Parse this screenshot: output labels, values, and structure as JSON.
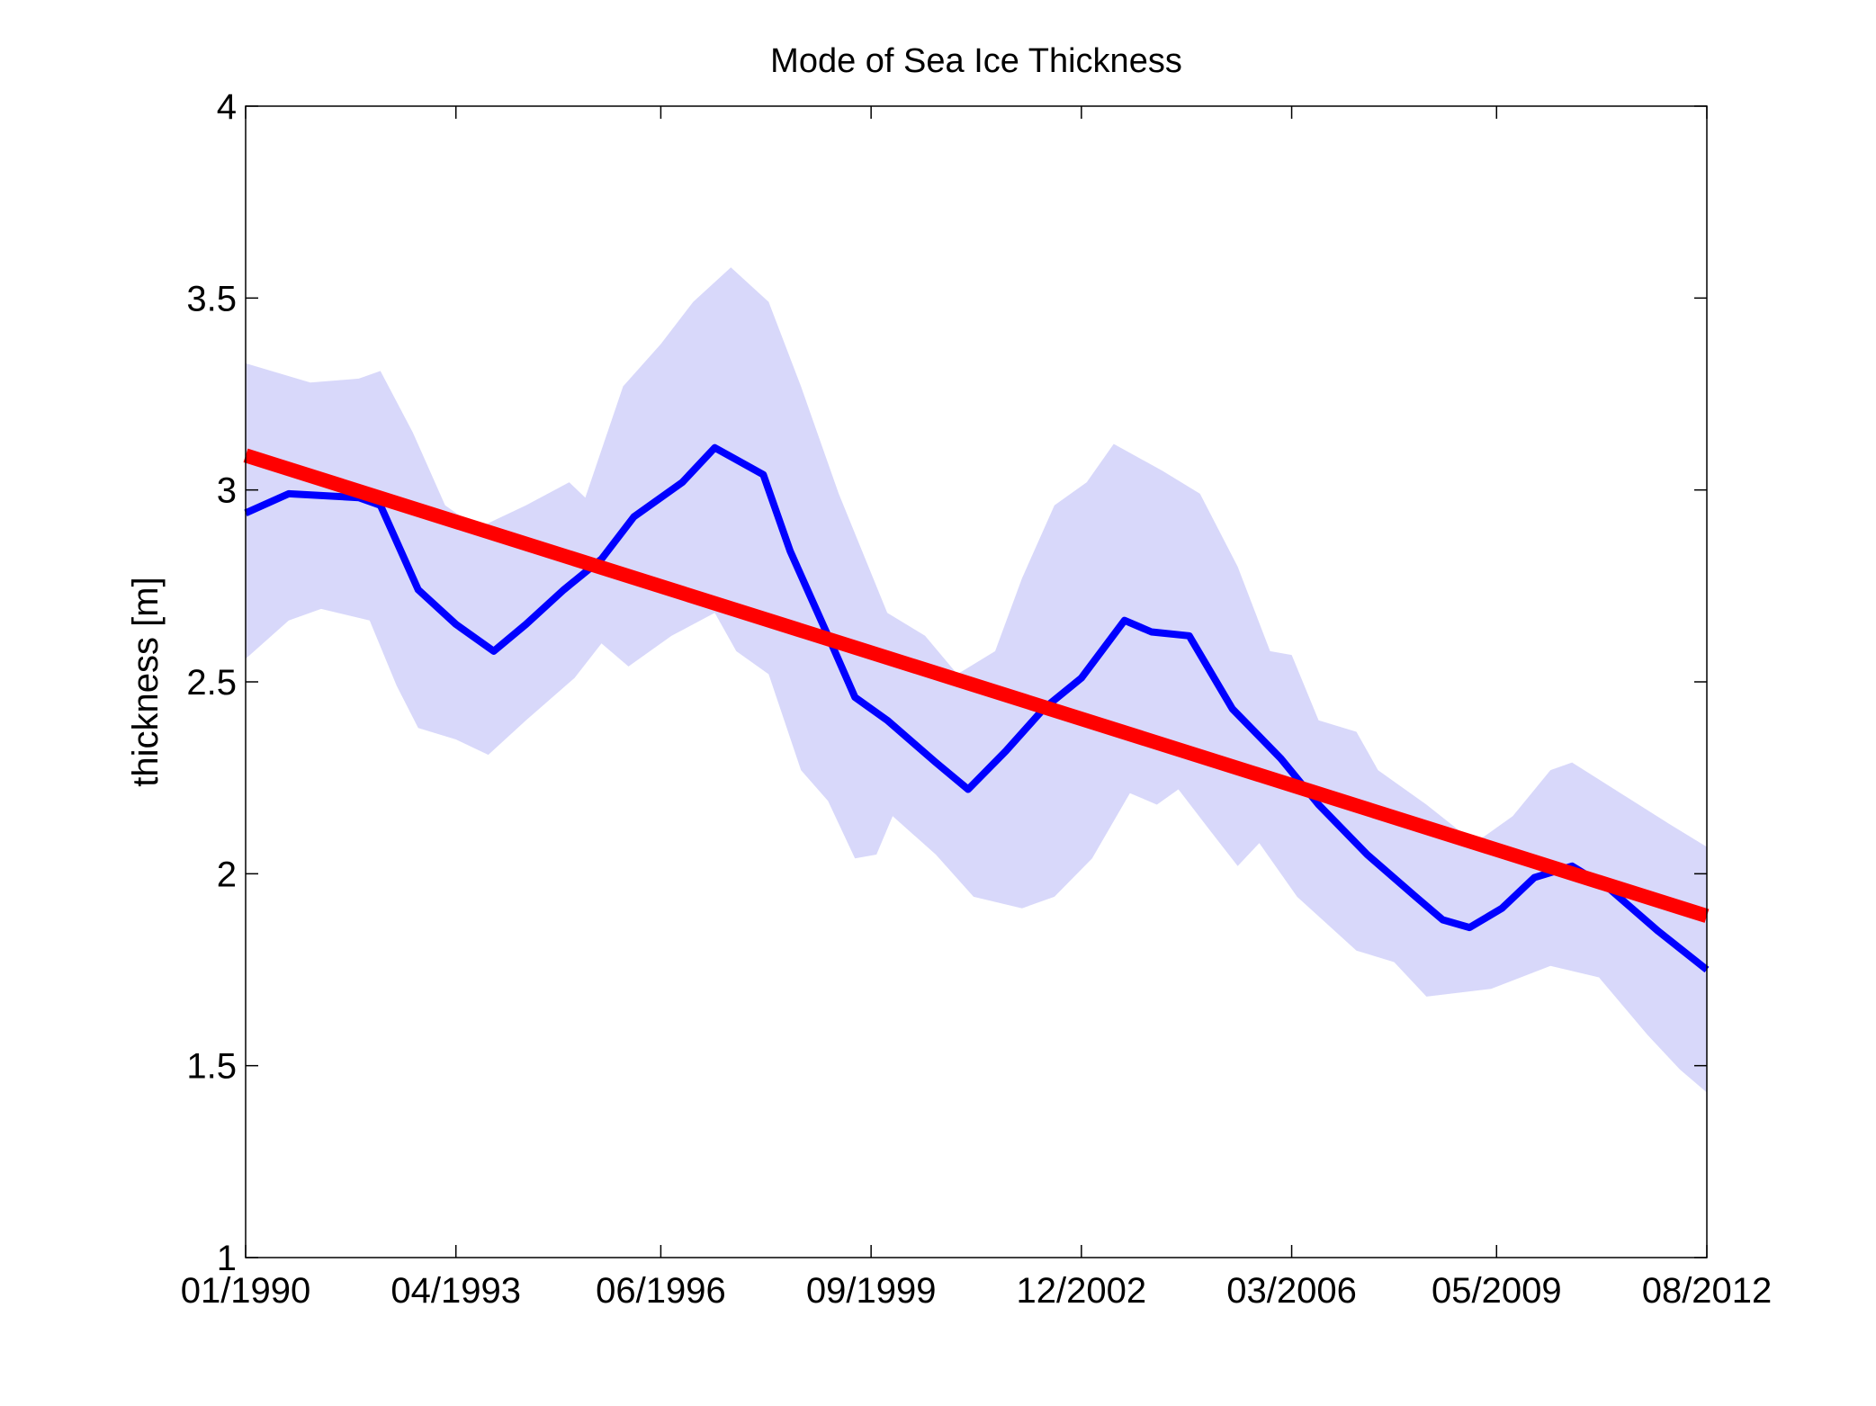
{
  "chart_data": {
    "type": "line",
    "title": "Mode of Sea Ice Thickness",
    "xlabel": "",
    "ylabel": "thickness [m]",
    "xlim": [
      "1990-01",
      "2012-08"
    ],
    "ylim": [
      1,
      4
    ],
    "x_ticks": [
      "01/1990",
      "04/1993",
      "06/1996",
      "09/1999",
      "12/2002",
      "03/2006",
      "05/2009",
      "08/2012"
    ],
    "x_tick_dates": [
      "1990-01",
      "1993-04",
      "1996-06",
      "1999-09",
      "2002-12",
      "2006-03",
      "2009-05",
      "2012-08"
    ],
    "y_ticks": [
      "1",
      "1.5",
      "2",
      "2.5",
      "3",
      "3.5",
      "4"
    ],
    "grid": false,
    "legend": "none",
    "colors": {
      "mode": "#0000ff",
      "trend": "#ff0000",
      "band": "#d8d8fa"
    },
    "band": {
      "upper": {
        "x": [
          "1990-01",
          "1991-01",
          "1991-10",
          "1992-02",
          "1992-08",
          "1993-02",
          "1993-08",
          "1994-05",
          "1995-01",
          "1995-04",
          "1995-11",
          "1996-06",
          "1996-12",
          "1997-07",
          "1998-02",
          "1998-08",
          "1999-03",
          "1999-12",
          "2000-07",
          "2001-01",
          "2001-08",
          "2002-01",
          "2002-07",
          "2003-01",
          "2003-06",
          "2004-03",
          "2004-10",
          "2005-05",
          "2005-11",
          "2006-03",
          "2006-08",
          "2007-03",
          "2007-07",
          "2008-04",
          "2009-01",
          "2009-08",
          "2010-03",
          "2010-07",
          "2011-04",
          "2012-01",
          "2012-08"
        ],
        "y": [
          3.33,
          3.28,
          3.29,
          3.31,
          3.15,
          2.96,
          2.9,
          2.96,
          3.02,
          2.98,
          3.27,
          3.38,
          3.49,
          3.58,
          3.49,
          3.27,
          2.99,
          2.68,
          2.62,
          2.52,
          2.58,
          2.77,
          2.96,
          3.02,
          3.12,
          3.05,
          2.99,
          2.8,
          2.58,
          2.57,
          2.4,
          2.37,
          2.27,
          2.18,
          2.08,
          2.15,
          2.27,
          2.29,
          2.21,
          2.13,
          2.07
        ]
      },
      "lower": {
        "x": [
          "1990-01",
          "1990-09",
          "1991-03",
          "1991-12",
          "1992-05",
          "1992-09",
          "1993-04",
          "1993-10",
          "1994-05",
          "1995-02",
          "1995-07",
          "1995-12",
          "1996-08",
          "1997-04",
          "1997-08",
          "1998-02",
          "1998-08",
          "1999-01",
          "1999-06",
          "1999-10",
          "2000-01",
          "2000-09",
          "2001-04",
          "2002-01",
          "2002-07",
          "2003-02",
          "2003-09",
          "2004-02",
          "2004-06",
          "2004-12",
          "2005-05",
          "2005-09",
          "2006-04",
          "2007-03",
          "2007-10",
          "2008-04",
          "2009-04",
          "2010-03",
          "2010-12",
          "2011-09",
          "2012-03",
          "2012-08"
        ],
        "y": [
          2.56,
          2.66,
          2.69,
          2.66,
          2.49,
          2.38,
          2.35,
          2.31,
          2.4,
          2.51,
          2.6,
          2.54,
          2.62,
          2.68,
          2.58,
          2.52,
          2.27,
          2.19,
          2.04,
          2.05,
          2.15,
          2.05,
          1.94,
          1.91,
          1.94,
          2.04,
          2.21,
          2.18,
          2.22,
          2.11,
          2.02,
          2.08,
          1.94,
          1.8,
          1.77,
          1.68,
          1.7,
          1.76,
          1.73,
          1.58,
          1.49,
          1.43
        ]
      }
    },
    "series": [
      {
        "x": [
          "1990-01",
          "1990-09",
          "1991-10",
          "1992-02",
          "1992-09",
          "1993-04",
          "1993-11",
          "1994-05",
          "1994-12",
          "1995-07",
          "1996-01",
          "1996-10",
          "1997-04",
          "1998-01",
          "1998-06",
          "1999-01",
          "1999-06",
          "1999-12",
          "2000-09",
          "2001-03",
          "2001-10",
          "2002-05",
          "2002-12",
          "2003-08",
          "2004-01",
          "2004-08",
          "2005-04",
          "2006-01",
          "2006-08",
          "2007-05",
          "2008-02",
          "2008-07",
          "2008-12",
          "2009-06",
          "2009-12",
          "2010-07",
          "2011-02",
          "2011-11",
          "2012-08"
        ],
        "y": [
          2.94,
          2.99,
          2.98,
          2.96,
          2.74,
          2.65,
          2.58,
          2.65,
          2.74,
          2.82,
          2.93,
          3.02,
          3.11,
          3.04,
          2.84,
          2.62,
          2.46,
          2.4,
          2.29,
          2.22,
          2.32,
          2.43,
          2.51,
          2.66,
          2.63,
          2.62,
          2.43,
          2.3,
          2.18,
          2.05,
          1.94,
          1.88,
          1.86,
          1.91,
          1.99,
          2.02,
          1.96,
          1.85,
          1.75
        ]
      },
      {
        "x": [
          "1990-01",
          "2012-08"
        ],
        "y": [
          3.09,
          1.89
        ]
      }
    ]
  }
}
